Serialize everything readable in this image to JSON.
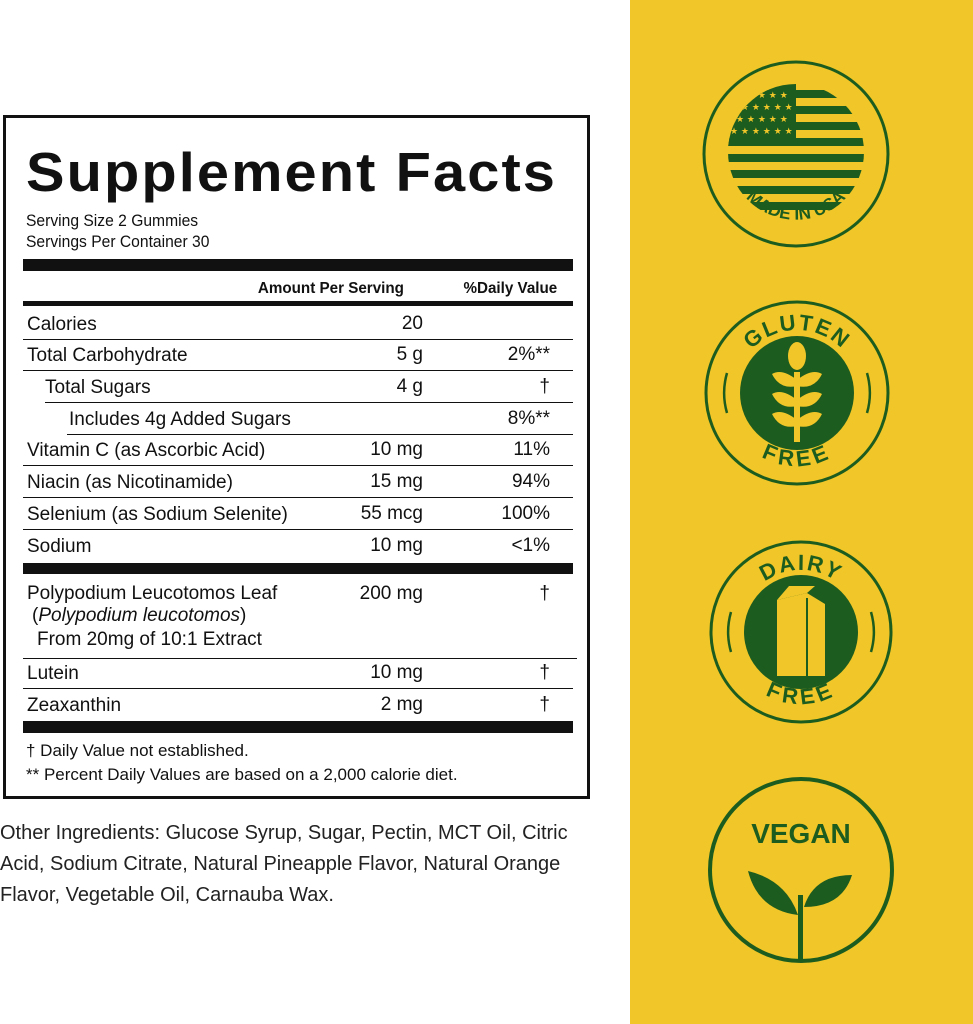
{
  "facts": {
    "title": "Supplement Facts",
    "serving_size": "Serving Size 2 Gummies",
    "servings_per_container": "Servings Per Container 30",
    "col_amount": "Amount Per Serving",
    "col_dv": "%Daily Value",
    "rows": [
      {
        "name": "Calories",
        "amount": "20",
        "dv": ""
      },
      {
        "name": "Total Carbohydrate",
        "amount": "5 g",
        "dv": "2%**"
      },
      {
        "name": "Total Sugars",
        "amount": "4 g",
        "dv": "†"
      },
      {
        "name": "Includes 4g Added Sugars",
        "amount": "",
        "dv": "8%**"
      },
      {
        "name": "Vitamin C (as Ascorbic Acid)",
        "amount": "10 mg",
        "dv": "11%"
      },
      {
        "name": "Niacin (as Nicotinamide)",
        "amount": "15 mg",
        "dv": "94%"
      },
      {
        "name": "Selenium (as Sodium Selenite)",
        "amount": "55 mcg",
        "dv": "100%"
      },
      {
        "name": "Sodium",
        "amount": "10 mg",
        "dv": "<1%"
      }
    ],
    "blend": {
      "name": "Polypodium Leucotomos Leaf",
      "latin": "Polypodium leucotomos",
      "latin_open": "(",
      "latin_close": ")",
      "extract": "From 20mg of 10:1 Extract",
      "amount": "200 mg",
      "dv": "†"
    },
    "rows2": [
      {
        "name": "Lutein",
        "amount": "10 mg",
        "dv": "†"
      },
      {
        "name": "Zeaxanthin",
        "amount": "2 mg",
        "dv": "†"
      }
    ],
    "footnote1": "† Daily Value not established.",
    "footnote2": "** Percent Daily Values are based on a 2,000 calorie diet."
  },
  "other_ingredients": "Other Ingredients: Glucose Syrup, Sugar, Pectin, MCT Oil, Citric Acid, Sodium Citrate, Natural Pineapple Flavor, Natural Orange Flavor, Vegetable Oil, Carnauba Wax.",
  "badges": {
    "usa": "MADE IN USA",
    "gluten_top": "GLUTEN",
    "gluten_bottom": "FREE",
    "dairy_top": "DAIRY",
    "dairy_bottom": "FREE",
    "vegan": "VEGAN"
  },
  "colors": {
    "panel": "#F0C628",
    "badge_green": "#1D5C1F"
  }
}
